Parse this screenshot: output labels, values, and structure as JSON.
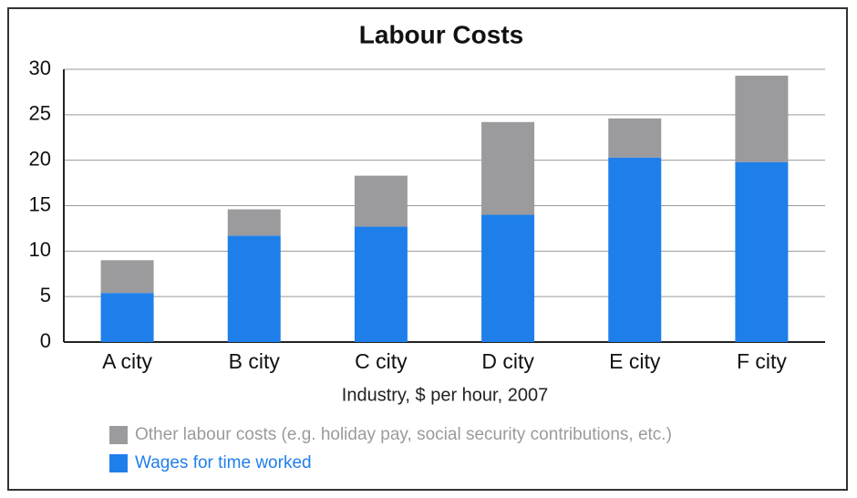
{
  "chart_data": {
    "type": "stacked_bar",
    "title": "Labour Costs",
    "x_label": "Industry, $ per hour, 2007",
    "categories": [
      "A city",
      "B city",
      "C city",
      "D city",
      "E city",
      "F city"
    ],
    "series": [
      {
        "name": "Wages for time worked",
        "color": "#1f7fea",
        "values": [
          5.4,
          11.7,
          12.7,
          14.0,
          20.3,
          19.8
        ]
      },
      {
        "name": "Other labour costs (e.g. holiday pay, social security contributions, etc.)",
        "color": "#9b9b9d",
        "values": [
          3.6,
          2.9,
          5.6,
          10.2,
          4.3,
          9.5
        ]
      }
    ],
    "ylim": [
      0,
      30
    ],
    "yticks": [
      0,
      5,
      10,
      15,
      20,
      25,
      30
    ],
    "grid": true
  }
}
